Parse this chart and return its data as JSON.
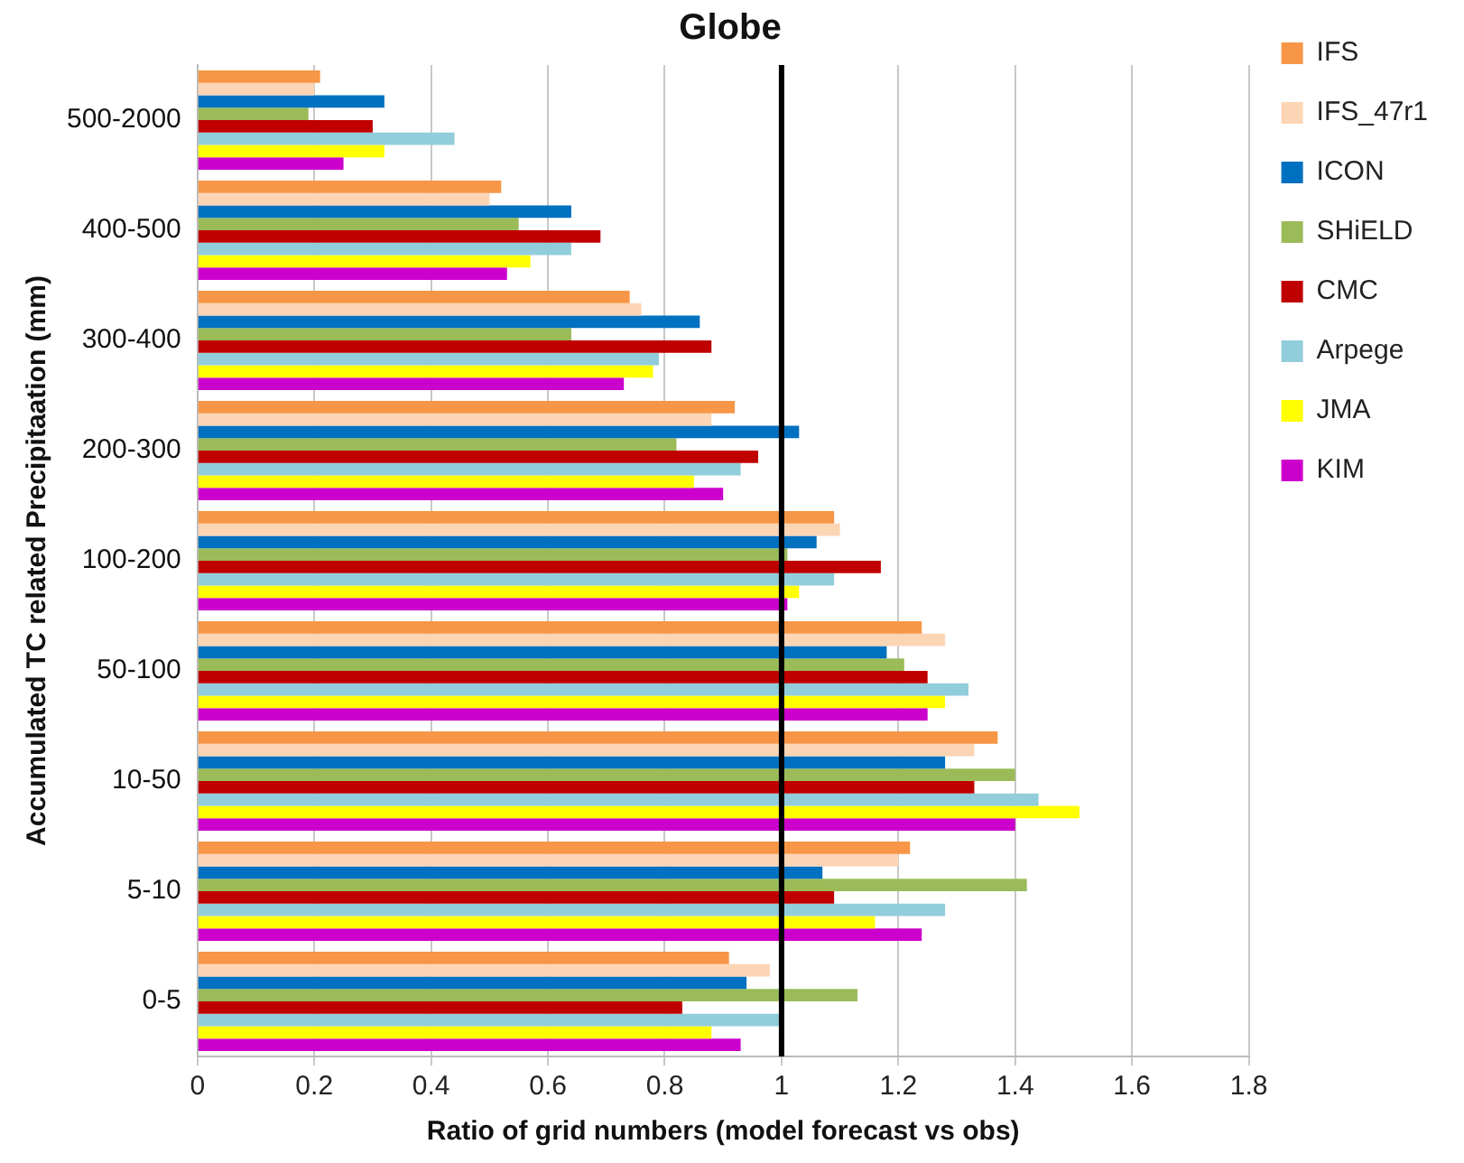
{
  "chart_data": {
    "type": "bar",
    "orientation": "horizontal",
    "title": "Globe",
    "xlabel": "Ratio of grid numbers (model forecast vs obs)",
    "ylabel": "Accumulated TC related Precipitaation (mm)",
    "categories": [
      "500-2000",
      "400-500",
      "300-400",
      "200-300",
      "100-200",
      "50-100",
      "10-50",
      "5-10",
      "0-5"
    ],
    "series": [
      {
        "name": "IFS",
        "color": "#f79646",
        "values": [
          0.21,
          0.52,
          0.74,
          0.92,
          1.09,
          1.24,
          1.37,
          1.22,
          0.91
        ]
      },
      {
        "name": "IFS_47r1",
        "color": "#fcd5b5",
        "values": [
          0.2,
          0.5,
          0.76,
          0.88,
          1.1,
          1.28,
          1.33,
          1.2,
          0.98
        ]
      },
      {
        "name": "ICON",
        "color": "#0070c0",
        "values": [
          0.32,
          0.64,
          0.86,
          1.03,
          1.06,
          1.18,
          1.28,
          1.07,
          0.94
        ]
      },
      {
        "name": "SHiELD",
        "color": "#9bbb59",
        "values": [
          0.19,
          0.55,
          0.64,
          0.82,
          1.01,
          1.21,
          1.4,
          1.42,
          1.13
        ]
      },
      {
        "name": "CMC",
        "color": "#c00000",
        "values": [
          0.3,
          0.69,
          0.88,
          0.96,
          1.17,
          1.25,
          1.33,
          1.09,
          0.83
        ]
      },
      {
        "name": "Arpege",
        "color": "#92cddc",
        "values": [
          0.44,
          0.64,
          0.79,
          0.93,
          1.09,
          1.32,
          1.44,
          1.28,
          1.0
        ]
      },
      {
        "name": "JMA",
        "color": "#ffff00",
        "values": [
          0.32,
          0.57,
          0.78,
          0.85,
          1.03,
          1.28,
          1.51,
          1.16,
          0.88
        ]
      },
      {
        "name": "KIM",
        "color": "#cc00cc",
        "values": [
          0.25,
          0.53,
          0.73,
          0.9,
          1.01,
          1.25,
          1.4,
          1.24,
          0.93
        ]
      }
    ],
    "xlim": [
      0,
      1.8
    ],
    "xticks": [
      0,
      0.2,
      0.4,
      0.6,
      0.8,
      1,
      1.2,
      1.4,
      1.6,
      1.8
    ],
    "ref_lines": [
      {
        "axis": "x",
        "value": 1,
        "color": "#000000"
      }
    ],
    "grid": "x",
    "legend": "right"
  }
}
